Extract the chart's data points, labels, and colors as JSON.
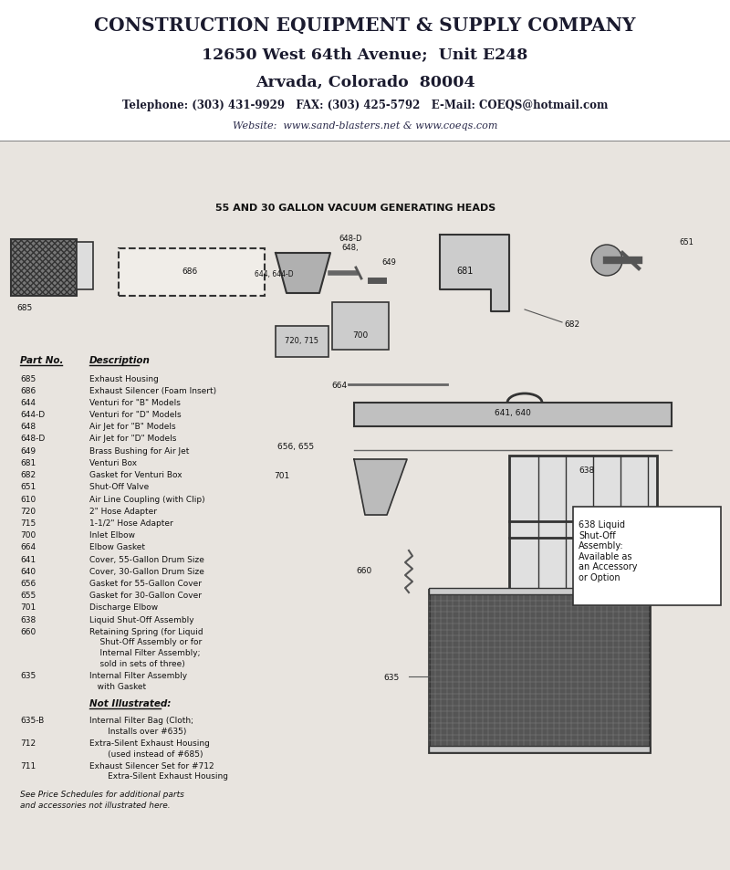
{
  "bg_color": "#e8e4df",
  "header_bg": "#ffffff",
  "title_line1": "CONSTRUCTION EQUIPMENT & SUPPLY COMPANY",
  "title_line2": "12650 West 64th Avenue;  Unit E248",
  "title_line3": "Arvada, Colorado  80004",
  "title_line4": "Telephone: (303) 431-9929   FAX: (303) 425-5792   E-Mail: COEQS@hotmail.com",
  "title_line5": "Website:  www.sand-blasters.net & www.coeqs.com",
  "section_title": "55 AND 30 GALLON VACUUM GENERATING HEADS",
  "parts_header_no": "Part No.",
  "parts_header_desc": "Description",
  "parts": [
    [
      "685",
      "Exhaust Housing"
    ],
    [
      "686",
      "Exhaust Silencer (Foam Insert)"
    ],
    [
      "644",
      "Venturi for \"B\" Models"
    ],
    [
      "644-D",
      "Venturi for \"D\" Models"
    ],
    [
      "648",
      "Air Jet for \"B\" Models"
    ],
    [
      "648-D",
      "Air Jet for \"D\" Models"
    ],
    [
      "649",
      "Brass Bushing for Air Jet"
    ],
    [
      "681",
      "Venturi Box"
    ],
    [
      "682",
      "Gasket for Venturi Box"
    ],
    [
      "651",
      "Shut-Off Valve"
    ],
    [
      "610",
      "Air Line Coupling (with Clip)"
    ],
    [
      "720",
      "2\" Hose Adapter"
    ],
    [
      "715",
      "1-1/2\" Hose Adapter"
    ],
    [
      "700",
      "Inlet Elbow"
    ],
    [
      "664",
      "Elbow Gasket"
    ],
    [
      "641",
      "Cover, 55-Gallon Drum Size"
    ],
    [
      "640",
      "Cover, 30-Gallon Drum Size"
    ],
    [
      "656",
      "Gasket for 55-Gallon Cover"
    ],
    [
      "655",
      "Gasket for 30-Gallon Cover"
    ],
    [
      "701",
      "Discharge Elbow"
    ],
    [
      "638",
      "Liquid Shut-Off Assembly"
    ],
    [
      "660",
      "Retaining Spring (for Liquid\n    Shut-Off Assembly or for\n    Internal Filter Assembly;\n    sold in sets of three)"
    ],
    [
      "635",
      "Internal Filter Assembly\n   with Gasket"
    ]
  ],
  "not_illustrated_header": "Not Illustrated:",
  "not_illustrated_parts": [
    [
      "635-B",
      "Internal Filter Bag (Cloth;\n       Installs over #635)"
    ],
    [
      "712",
      "Extra-Silent Exhaust Housing\n       (used instead of #685)"
    ],
    [
      "711",
      "Exhaust Silencer Set for #712\n       Extra-Silent Exhaust Housing"
    ]
  ],
  "footnote": "See Price Schedules for additional parts\nand accessories not illustrated here.",
  "box_note": "638 Liquid\nShut-Off\nAssembly:\nAvailable as\nan Accessory\nor Option"
}
